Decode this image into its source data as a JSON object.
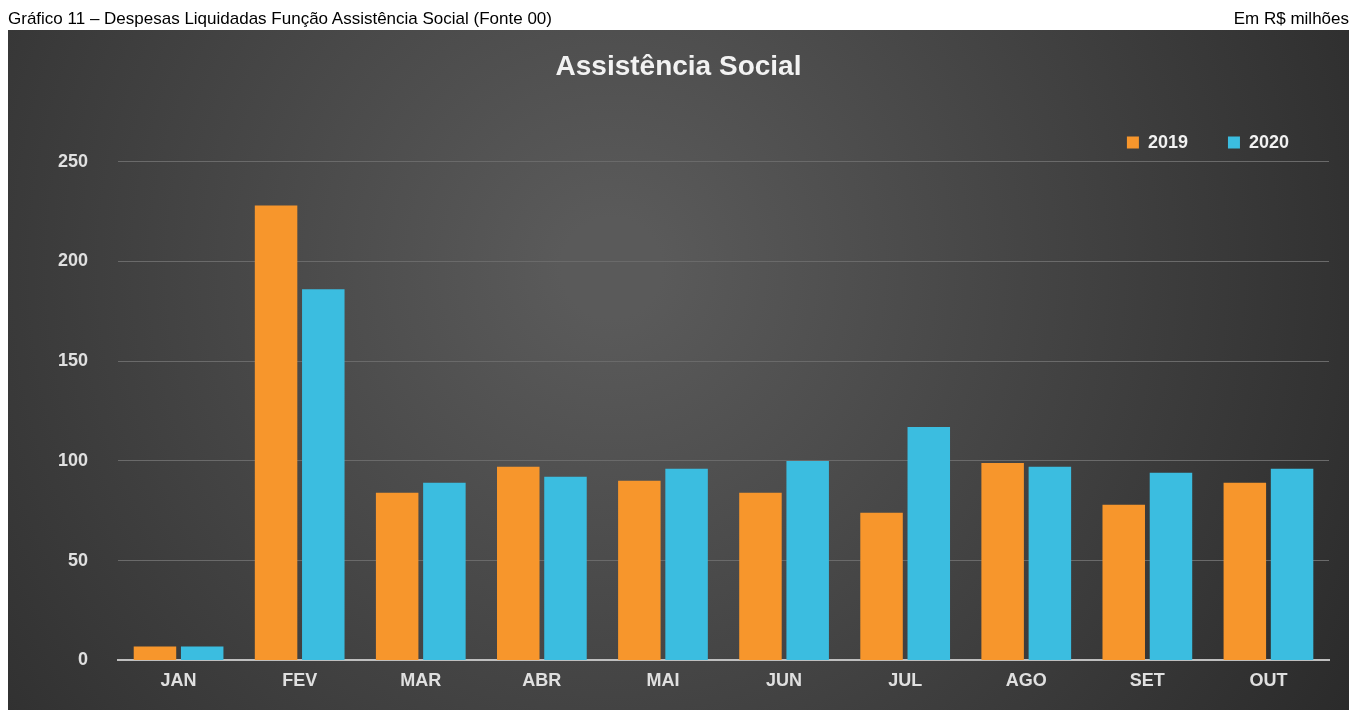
{
  "chart_data": {
    "type": "bar",
    "title": "Assistência Social",
    "annotations": [
      "Gráfico 11 – Despesas Liquidadas Função Assistência Social (Fonte 00)",
      "Em R$ milhões"
    ],
    "categories": [
      "JAN",
      "FEV",
      "MAR",
      "ABR",
      "MAI",
      "JUN",
      "JUL",
      "AGO",
      "SET",
      "OUT"
    ],
    "series": [
      {
        "name": "2019",
        "color": "#f7962c",
        "values": [
          7,
          228,
          84,
          97,
          90,
          84,
          74,
          99,
          78,
          89
        ]
      },
      {
        "name": "2020",
        "color": "#3bbde0",
        "values": [
          7,
          186,
          89,
          92,
          96,
          100,
          117,
          97,
          94,
          96
        ]
      }
    ],
    "ylim": [
      0,
      250
    ],
    "yticks": [
      0,
      50,
      100,
      150,
      200,
      250
    ],
    "grid": "y",
    "legend": "top right"
  }
}
